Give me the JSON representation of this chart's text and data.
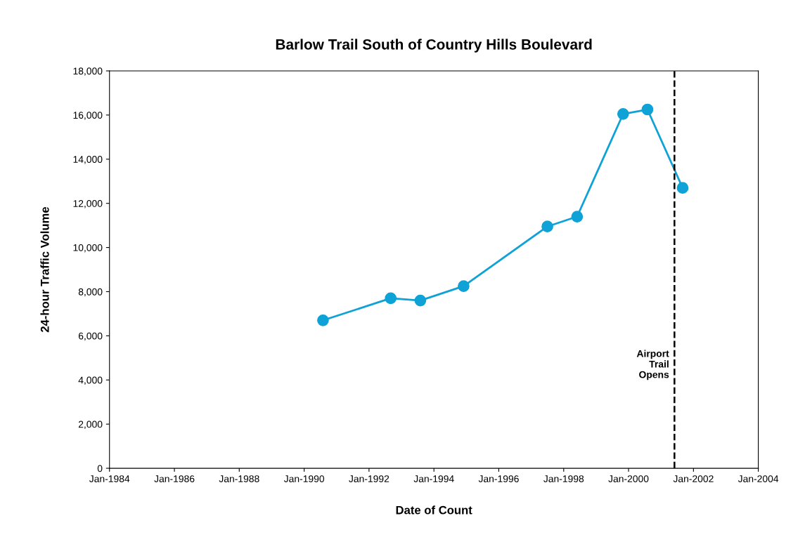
{
  "chart_data": {
    "type": "line",
    "title": "Barlow Trail South of Country Hills Boulevard",
    "xlabel": "Date of Count",
    "ylabel": "24-hour Traffic Volume",
    "x": [
      "1990-08",
      "1992-09",
      "1993-08",
      "1994-12",
      "1997-07",
      "1998-06",
      "1999-11",
      "2000-08",
      "2001-09"
    ],
    "series": [
      {
        "color": "#0ea2d6",
        "values": [
          6700,
          7700,
          7600,
          8250,
          10950,
          11400,
          16050,
          16250,
          12700
        ]
      }
    ],
    "xlim": [
      "1984-01",
      "2004-01"
    ],
    "xticks": [
      {
        "value": "1984-01",
        "label": "Jan-1984"
      },
      {
        "value": "1986-01",
        "label": "Jan-1986"
      },
      {
        "value": "1988-01",
        "label": "Jan-1988"
      },
      {
        "value": "1990-01",
        "label": "Jan-1990"
      },
      {
        "value": "1992-01",
        "label": "Jan-1992"
      },
      {
        "value": "1994-01",
        "label": "Jan-1994"
      },
      {
        "value": "1996-01",
        "label": "Jan-1996"
      },
      {
        "value": "1998-01",
        "label": "Jan-1998"
      },
      {
        "value": "2000-01",
        "label": "Jan-2000"
      },
      {
        "value": "2002-01",
        "label": "Jan-2002"
      },
      {
        "value": "2004-01",
        "label": "Jan-2004"
      }
    ],
    "ylim": [
      0,
      18000
    ],
    "yticks": [
      {
        "value": 0,
        "label": "0"
      },
      {
        "value": 2000,
        "label": "2,000"
      },
      {
        "value": 4000,
        "label": "4,000"
      },
      {
        "value": 6000,
        "label": "6,000"
      },
      {
        "value": 8000,
        "label": "8,000"
      },
      {
        "value": 10000,
        "label": "10,000"
      },
      {
        "value": 12000,
        "label": "12,000"
      },
      {
        "value": 14000,
        "label": "14,000"
      },
      {
        "value": 16000,
        "label": "16,000"
      },
      {
        "value": 18000,
        "label": "18,000"
      }
    ],
    "ref_lines": [
      {
        "axis": "x",
        "value": "2001-06",
        "label": "Airport\nTrail\nOpens",
        "color": "#000000",
        "line_style": "dashed"
      }
    ],
    "marker": "circle",
    "line_style": "solid",
    "grid": false,
    "legend": false
  }
}
